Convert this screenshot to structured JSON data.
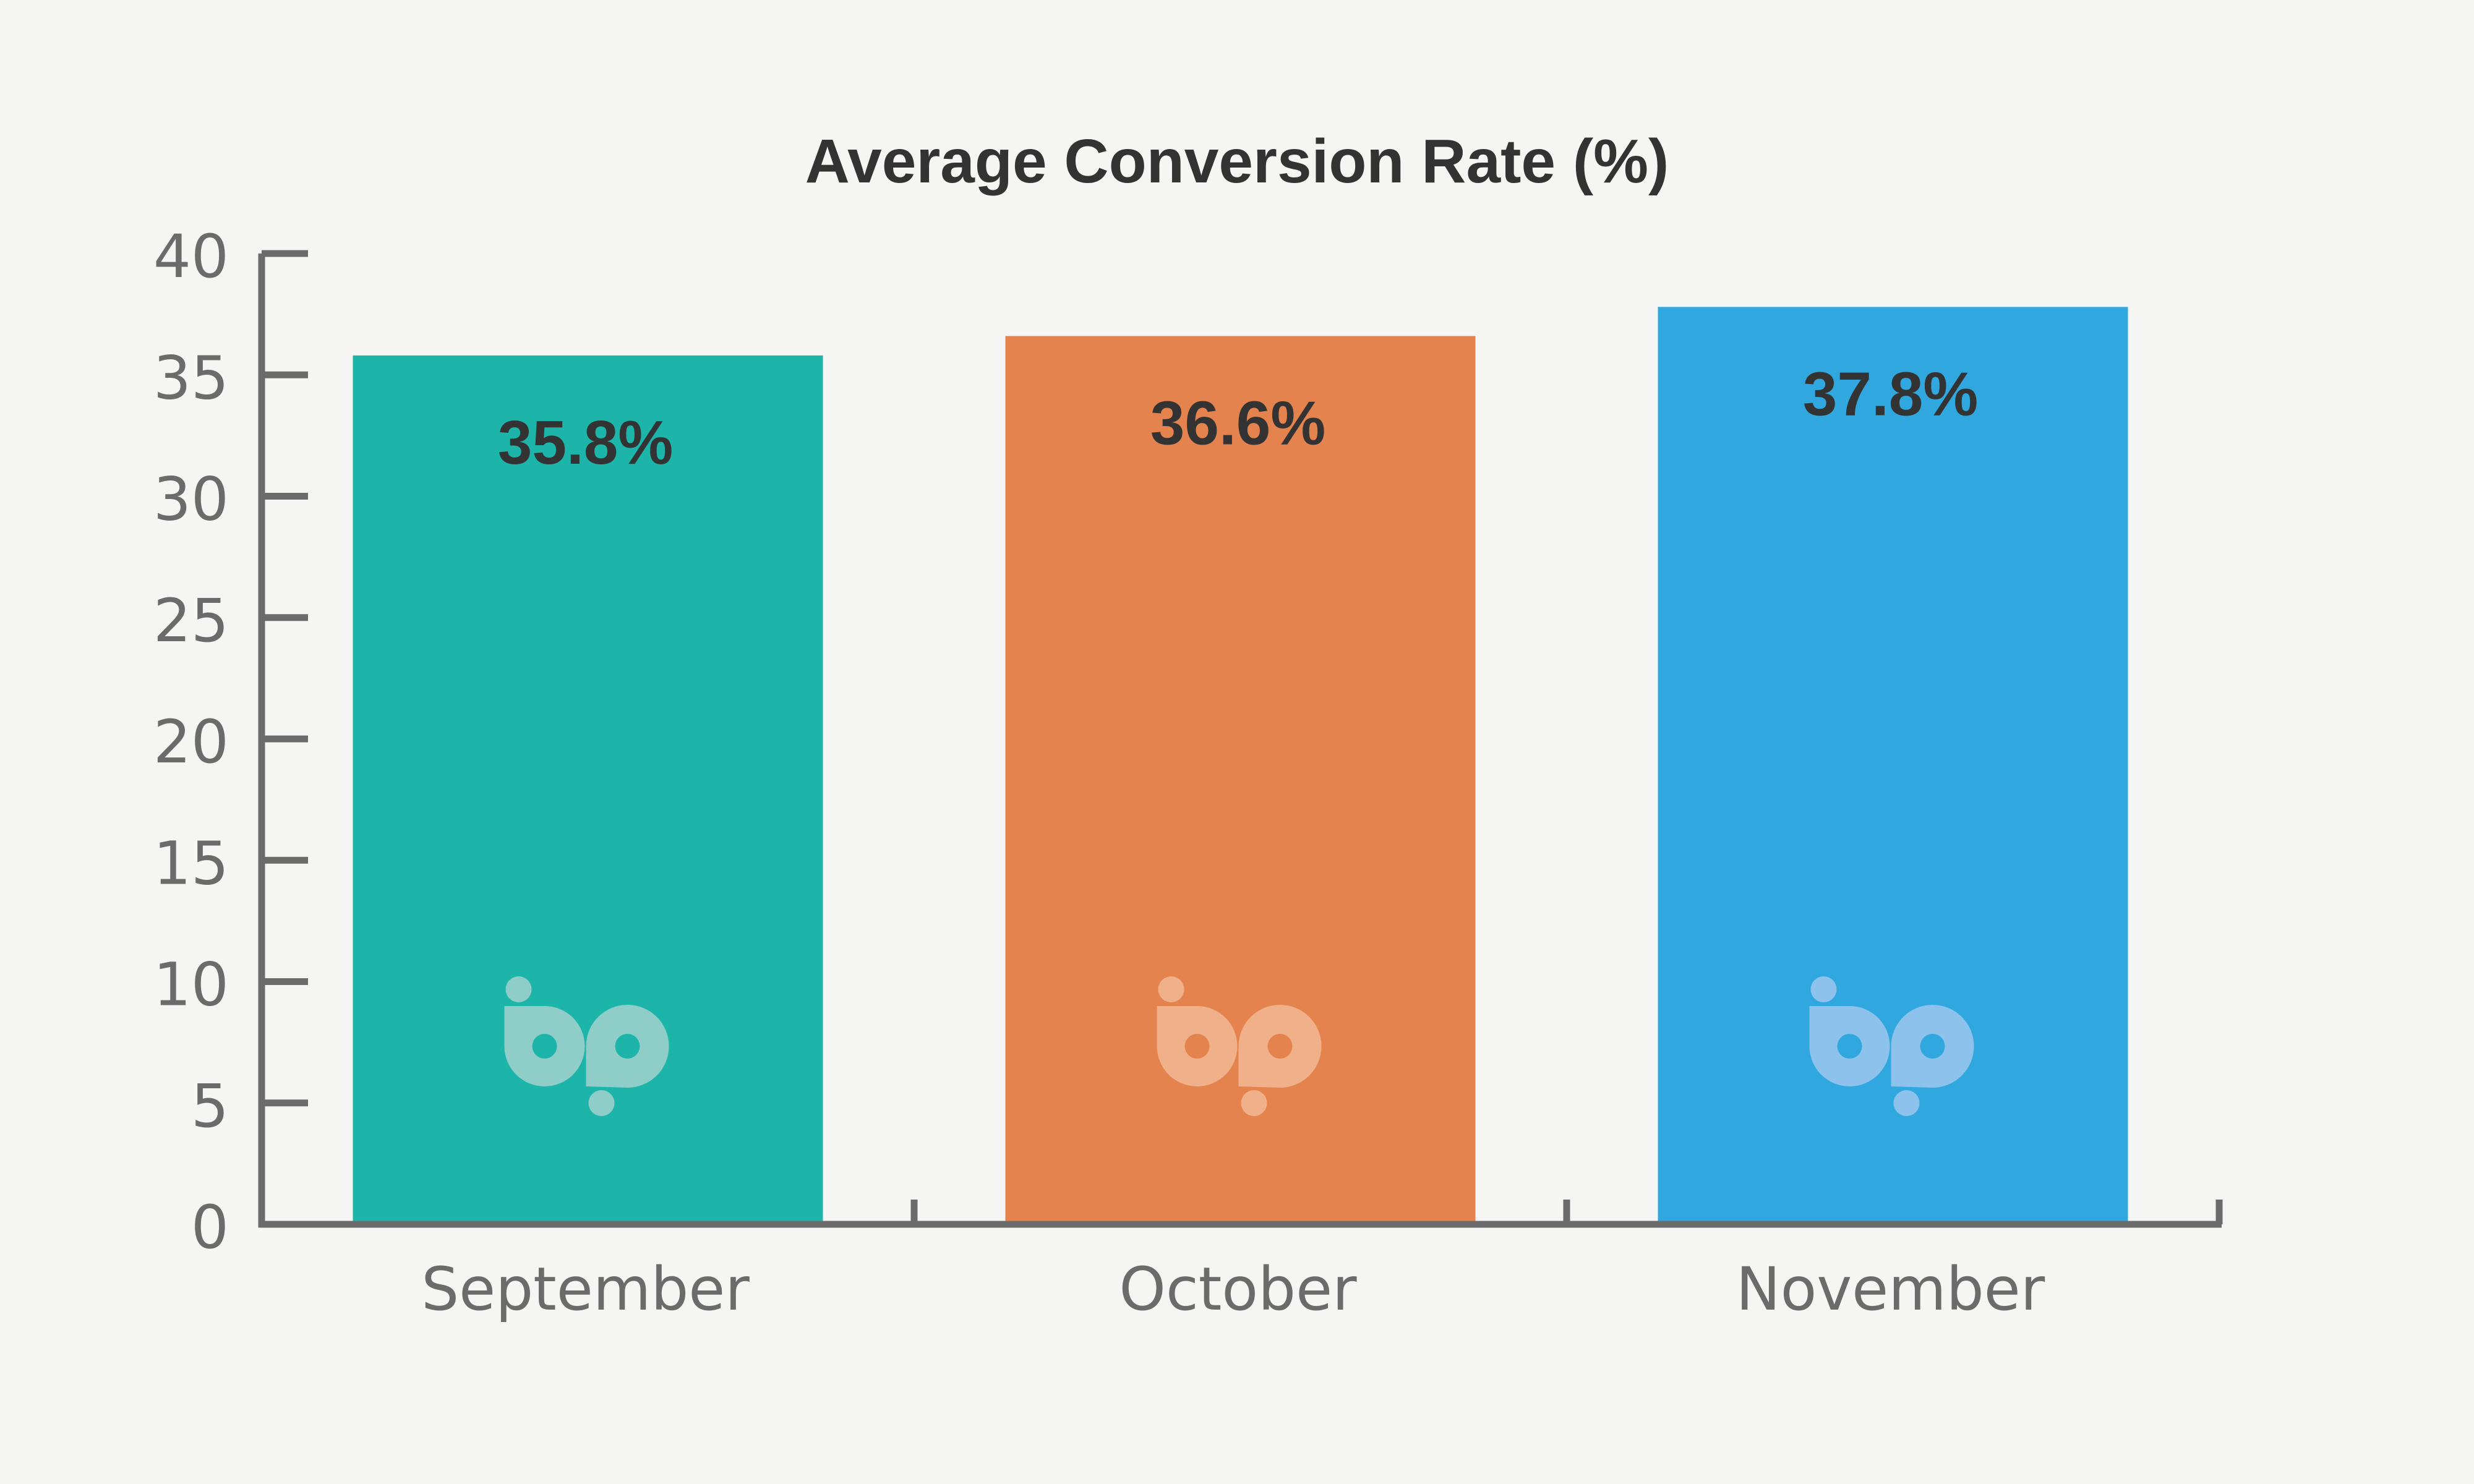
{
  "chart_data": {
    "type": "bar",
    "title": "Average Conversion Rate (%)",
    "categories": [
      "September",
      "October",
      "November"
    ],
    "values": [
      35.8,
      36.6,
      37.8
    ],
    "value_labels": [
      "35.8%",
      "36.6%",
      "37.8%"
    ],
    "colors": [
      "#1db5aa",
      "#e5834e",
      "#31a7e0"
    ],
    "logo_colors": [
      "#8fcec8",
      "#f0b08a",
      "#8cc2ec"
    ],
    "ylim": [
      0,
      40
    ],
    "yticks": [
      0,
      5,
      10,
      15,
      20,
      25,
      30,
      35,
      40
    ],
    "ytick_labels": [
      "0",
      "5",
      "10",
      "15",
      "20",
      "25",
      "30",
      "35",
      "40"
    ],
    "xlabel": "",
    "ylabel": "",
    "grid": false,
    "legend": "none",
    "axis_color": "#6b6b6b",
    "watermark_icon": "bp-logo-icon"
  }
}
